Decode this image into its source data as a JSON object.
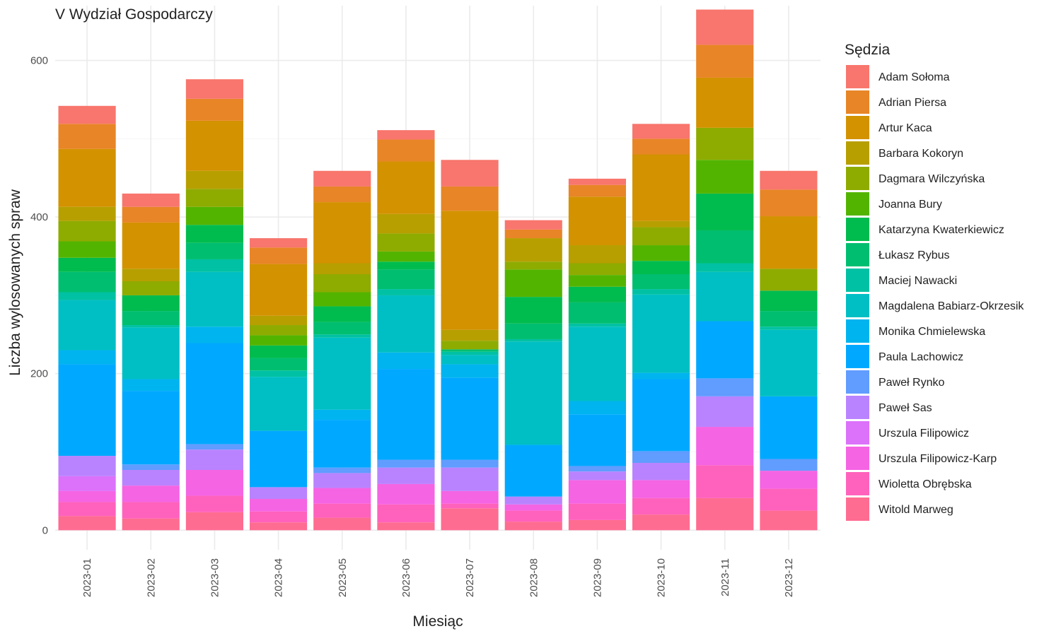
{
  "chart_data": {
    "type": "bar",
    "stacked": true,
    "title": "V Wydział Gospodarczy",
    "xlabel": "Miesiąc",
    "ylabel": "Liczba wylosowanych spraw",
    "ylim": [
      -25,
      670
    ],
    "yticks": [
      0,
      200,
      400,
      600
    ],
    "grid": true,
    "legend_title": "Sędzia",
    "legend_position": "right",
    "categories": [
      "2023-01",
      "2023-02",
      "2023-03",
      "2023-04",
      "2023-05",
      "2023-06",
      "2023-07",
      "2023-08",
      "2023-09",
      "2023-10",
      "2023-11",
      "2023-12"
    ],
    "series": [
      {
        "name": "Witold Marweg",
        "color": "#FF6C91",
        "values": [
          18,
          15,
          23,
          10,
          16,
          10,
          28,
          11,
          13,
          20,
          41,
          25
        ]
      },
      {
        "name": "Wioletta Obrębska",
        "color": "#FF62BC",
        "values": [
          18,
          21,
          21,
          14,
          18,
          23,
          6,
          14,
          21,
          21,
          42,
          28
        ]
      },
      {
        "name": "Urszula Filipowicz-Karp",
        "color": "#F564E3",
        "values": [
          14,
          21,
          33,
          16,
          20,
          26,
          16,
          8,
          30,
          23,
          49,
          23
        ]
      },
      {
        "name": "Urszula Filipowicz",
        "color": "#DC71FA",
        "values": [
          19,
          0,
          0,
          0,
          0,
          0,
          0,
          0,
          0,
          0,
          0,
          0
        ]
      },
      {
        "name": "Paweł Sas",
        "color": "#B983FF",
        "values": [
          26,
          20,
          26,
          15,
          19,
          21,
          30,
          10,
          11,
          22,
          39,
          0
        ]
      },
      {
        "name": "Paweł Rynko",
        "color": "#619CFF",
        "values": [
          0,
          7,
          7,
          0,
          7,
          10,
          10,
          0,
          7,
          15,
          23,
          15
        ]
      },
      {
        "name": "Paula Lachowicz",
        "color": "#00A9FF",
        "values": [
          117,
          94,
          129,
          72,
          61,
          116,
          105,
          66,
          66,
          92,
          73,
          80
        ]
      },
      {
        "name": "Monika Chmielewska",
        "color": "#00B4EF",
        "values": [
          18,
          15,
          21,
          0,
          13,
          21,
          17,
          0,
          17,
          8,
          0,
          0
        ]
      },
      {
        "name": "Magdalena Babiarz-Okrzesik",
        "color": "#00BFC4",
        "values": [
          64,
          66,
          70,
          69,
          92,
          73,
          12,
          132,
          95,
          100,
          63,
          85
        ]
      },
      {
        "name": "Maciej Nawacki",
        "color": "#00C1A3",
        "values": [
          10,
          3,
          16,
          8,
          4,
          8,
          4,
          3,
          4,
          7,
          11,
          4
        ]
      },
      {
        "name": "Łukasz Rybus",
        "color": "#00BE70",
        "values": [
          26,
          18,
          21,
          16,
          16,
          25,
          3,
          20,
          27,
          19,
          42,
          20
        ]
      },
      {
        "name": "Katarzyna Kwaterkiewicz",
        "color": "#00BB4E",
        "values": [
          18,
          20,
          23,
          16,
          20,
          10,
          0,
          34,
          20,
          17,
          47,
          26
        ]
      },
      {
        "name": "Joanna Bury",
        "color": "#53B400",
        "values": [
          21,
          0,
          23,
          13,
          18,
          13,
          0,
          35,
          15,
          20,
          43,
          0
        ]
      },
      {
        "name": "Dagmara Wilczyńska",
        "color": "#8EAB00",
        "values": [
          26,
          18,
          23,
          13,
          23,
          23,
          11,
          10,
          15,
          23,
          41,
          28
        ]
      },
      {
        "name": "Barbara Kokoryn",
        "color": "#B79F00",
        "values": [
          18,
          16,
          23,
          12,
          14,
          25,
          14,
          30,
          23,
          8,
          0,
          0
        ]
      },
      {
        "name": "Artur Kaca",
        "color": "#D39200",
        "values": [
          74,
          59,
          64,
          66,
          78,
          67,
          152,
          0,
          62,
          85,
          64,
          67
        ]
      },
      {
        "name": "Adrian Piersa",
        "color": "#E88526",
        "values": [
          32,
          20,
          28,
          21,
          20,
          28,
          31,
          11,
          15,
          20,
          42,
          34
        ]
      },
      {
        "name": "Adam Sołoma",
        "color": "#F8766D",
        "values": [
          23,
          17,
          25,
          12,
          20,
          12,
          34,
          12,
          8,
          19,
          45,
          24
        ]
      }
    ]
  }
}
